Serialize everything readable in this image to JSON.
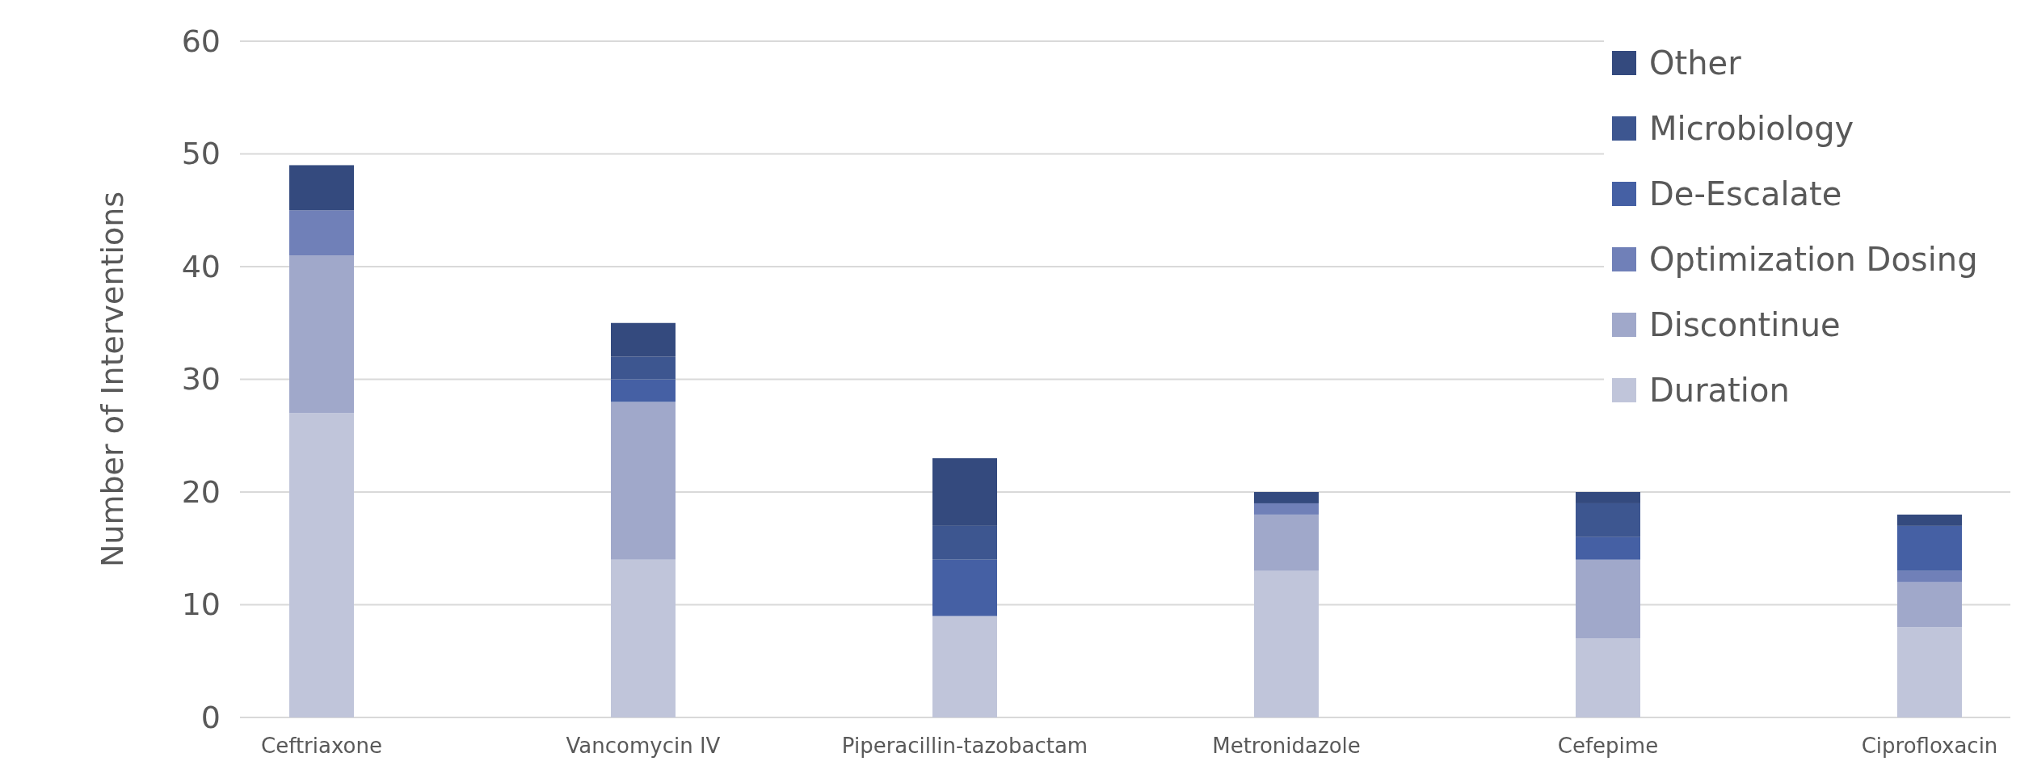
{
  "chart_data": {
    "type": "bar",
    "stacked": true,
    "ylabel": "Number of Interventions",
    "categories": [
      "Ceftriaxone",
      "Vancomycin IV",
      "Piperacillin-tazobactam",
      "Metronidazole",
      "Cefepime",
      "Ciprofloxacin"
    ],
    "series": [
      {
        "name": "Duration",
        "color": "#c0c5da",
        "values": [
          27,
          14,
          9,
          13,
          7,
          8
        ]
      },
      {
        "name": "Discontinue",
        "color": "#a0a8ca",
        "values": [
          14,
          14,
          0,
          5,
          7,
          4
        ]
      },
      {
        "name": "Optimization Dosing",
        "color": "#7080b8",
        "values": [
          4,
          0,
          0,
          1,
          0,
          1
        ]
      },
      {
        "name": "De-Escalate",
        "color": "#4560a4",
        "values": [
          0,
          2,
          5,
          0,
          2,
          4
        ]
      },
      {
        "name": "Microbiology",
        "color": "#3d5690",
        "values": [
          0,
          2,
          3,
          0,
          3,
          0
        ]
      },
      {
        "name": "Other",
        "color": "#344a7e",
        "values": [
          4,
          3,
          6,
          1,
          1,
          1
        ]
      }
    ],
    "ylim": [
      0,
      60
    ],
    "yticks": [
      0,
      10,
      20,
      30,
      40,
      50,
      60
    ],
    "grid": "y",
    "legend": "top right"
  }
}
